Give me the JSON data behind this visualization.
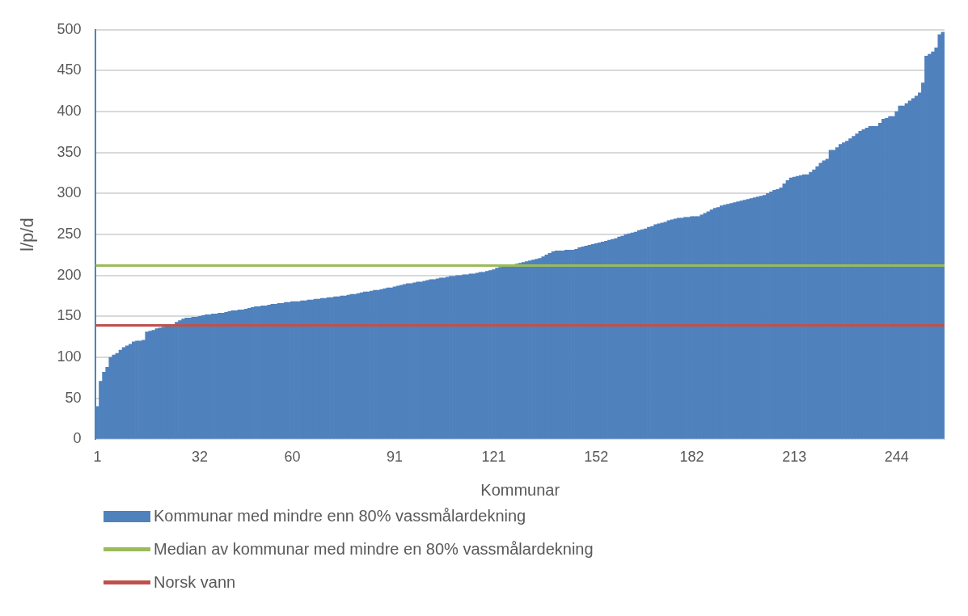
{
  "chart_data": {
    "type": "bar",
    "xlabel": "Kommunar",
    "ylabel": "l/p/d",
    "categories": [
      "1",
      null,
      null,
      null,
      null,
      null,
      null,
      null,
      null,
      null,
      null,
      null,
      null,
      null,
      null,
      null,
      null,
      null,
      null,
      null,
      null,
      null,
      null,
      null,
      null,
      null,
      null,
      null,
      null,
      null,
      null,
      "32",
      null,
      null,
      null,
      null,
      null,
      null,
      null,
      null,
      null,
      null,
      null,
      null,
      null,
      null,
      null,
      null,
      null,
      null,
      null,
      null,
      null,
      null,
      null,
      null,
      null,
      null,
      null,
      "60",
      null,
      null,
      null,
      null,
      null,
      null,
      null,
      null,
      null,
      null,
      null,
      null,
      null,
      null,
      null,
      null,
      null,
      null,
      null,
      null,
      null,
      null,
      null,
      null,
      null,
      null,
      null,
      null,
      null,
      null,
      "91",
      null,
      null,
      null,
      null,
      null,
      null,
      null,
      null,
      null,
      null,
      null,
      null,
      null,
      null,
      null,
      null,
      null,
      null,
      null,
      null,
      null,
      null,
      null,
      null,
      null,
      null,
      null,
      null,
      null,
      "121",
      null,
      null,
      null,
      null,
      null,
      null,
      null,
      null,
      null,
      null,
      null,
      null,
      null,
      null,
      null,
      null,
      null,
      null,
      null,
      null,
      null,
      null,
      null,
      null,
      null,
      null,
      null,
      null,
      null,
      null,
      "152",
      null,
      null,
      null,
      null,
      null,
      null,
      null,
      null,
      null,
      null,
      null,
      null,
      null,
      null,
      null,
      null,
      null,
      null,
      null,
      null,
      null,
      null,
      null,
      null,
      null,
      null,
      null,
      null,
      "182",
      null,
      null,
      null,
      null,
      null,
      null,
      null,
      null,
      null,
      null,
      null,
      null,
      null,
      null,
      null,
      null,
      null,
      null,
      null,
      null,
      null,
      null,
      null,
      null,
      null,
      null,
      null,
      null,
      null,
      null,
      "213",
      null,
      null,
      null,
      null,
      null,
      null,
      null,
      null,
      null,
      null,
      null,
      null,
      null,
      null,
      null,
      null,
      null,
      null,
      null,
      null,
      null,
      null,
      null,
      null,
      null,
      null,
      null,
      null,
      null,
      null,
      "244",
      null,
      null,
      null,
      null,
      null,
      null,
      null,
      null,
      null,
      null,
      null,
      null,
      null,
      null
    ],
    "series": [
      {
        "name": "Kommunar med mindre enn 80% vassmålardekning",
        "color": "#4f81bd",
        "values": [
          40,
          71,
          82,
          88,
          100,
          103,
          105,
          109,
          112,
          114,
          116,
          119,
          120,
          120,
          121,
          131,
          132,
          133,
          135,
          136,
          137,
          138,
          139,
          140,
          143,
          145,
          147,
          148,
          148,
          149,
          149,
          150,
          151,
          152,
          152,
          153,
          153,
          154,
          154,
          155,
          156,
          157,
          157,
          158,
          158,
          159,
          160,
          161,
          162,
          162,
          163,
          163,
          164,
          165,
          165,
          166,
          166,
          167,
          167,
          168,
          168,
          168,
          169,
          169,
          170,
          170,
          171,
          171,
          172,
          172,
          173,
          173,
          174,
          174,
          175,
          175,
          176,
          177,
          177,
          178,
          179,
          180,
          180,
          181,
          182,
          182,
          183,
          184,
          185,
          185,
          186,
          187,
          188,
          189,
          190,
          190,
          191,
          192,
          192,
          193,
          194,
          195,
          195,
          196,
          197,
          197,
          198,
          199,
          199,
          200,
          200,
          201,
          201,
          202,
          202,
          203,
          204,
          204,
          205,
          206,
          207,
          209,
          210,
          211,
          211,
          212,
          213,
          214,
          215,
          216,
          217,
          218,
          219,
          220,
          221,
          223,
          225,
          227,
          229,
          230,
          230,
          230,
          231,
          231,
          231,
          232,
          234,
          235,
          236,
          237,
          238,
          239,
          240,
          241,
          242,
          243,
          244,
          245,
          247,
          248,
          250,
          251,
          252,
          253,
          255,
          256,
          257,
          259,
          260,
          262,
          263,
          264,
          265,
          267,
          268,
          269,
          270,
          270,
          271,
          271,
          272,
          272,
          272,
          274,
          276,
          278,
          280,
          282,
          283,
          285,
          286,
          287,
          288,
          289,
          290,
          291,
          292,
          293,
          294,
          295,
          296,
          297,
          298,
          300,
          302,
          304,
          305,
          307,
          312,
          316,
          319,
          320,
          321,
          322,
          323,
          323,
          326,
          329,
          333,
          337,
          340,
          342,
          353,
          353,
          356,
          360,
          362,
          364,
          367,
          370,
          373,
          376,
          378,
          380,
          382,
          382,
          382,
          386,
          391,
          392,
          394,
          394,
          400,
          407,
          407,
          410,
          413,
          416,
          419,
          423,
          435,
          468,
          470,
          473,
          478,
          494,
          497
        ]
      }
    ],
    "ref_lines": [
      {
        "axis": "y",
        "value": 212,
        "label": "Median av kommunar med mindre en 80% vassmålardekning",
        "color": "#9bbb59"
      },
      {
        "axis": "y",
        "value": 139,
        "label": "Norsk vann",
        "color": "#c0504d"
      }
    ],
    "ylim": [
      0,
      500
    ],
    "yticks": [
      0,
      50,
      100,
      150,
      200,
      250,
      300,
      350,
      400,
      450,
      500
    ],
    "grid": "y",
    "legend": "bottom"
  }
}
